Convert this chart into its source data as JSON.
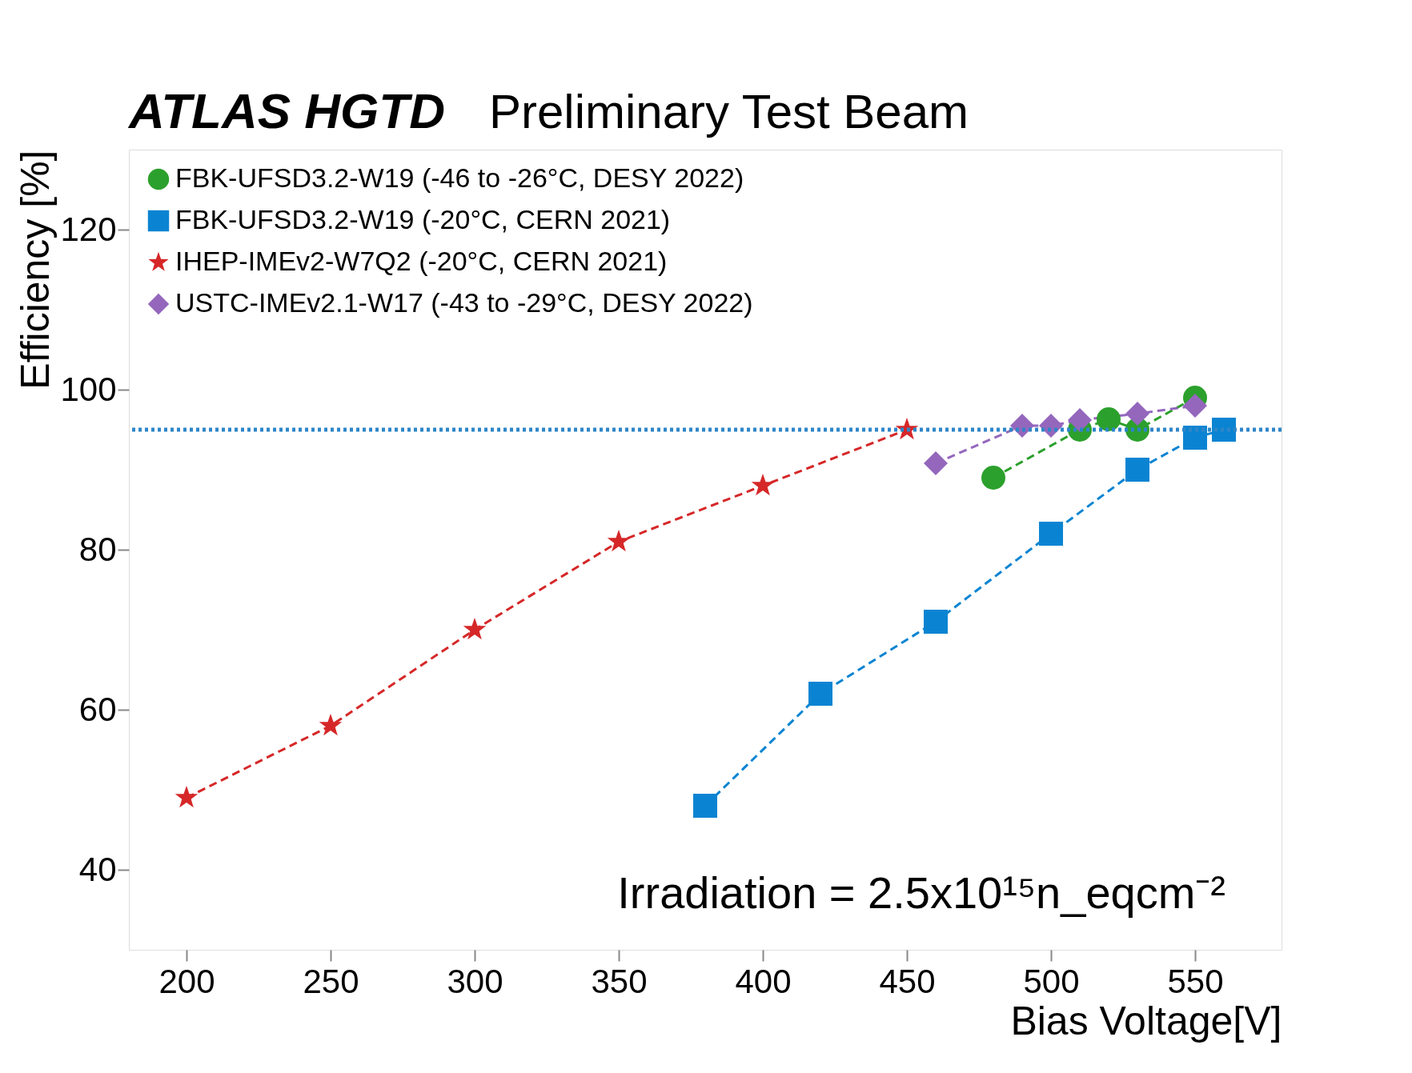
{
  "chart_data": {
    "type": "line",
    "title": "ATLAS HGTD",
    "subtitle": "Preliminary Test Beam",
    "xlabel": "Bias Voltage[V]",
    "ylabel": "Efficiency [%]",
    "xlim": [
      180,
      580
    ],
    "xticks": [
      200,
      250,
      300,
      350,
      400,
      450,
      500,
      550
    ],
    "ylim": [
      30,
      130
    ],
    "yticks": [
      40,
      60,
      80,
      100,
      120
    ],
    "line_style": "dashed",
    "legend": "top left",
    "grid": false,
    "series": [
      {
        "name": "FBK-UFSD3.2-W19 (-46 to -26°C, DESY 2022)",
        "color": "#2ca02c",
        "marker": "circle",
        "x": [
          480,
          510,
          520,
          530,
          550
        ],
        "values": [
          89,
          95,
          96.3,
          95,
          99
        ]
      },
      {
        "name": "FBK-UFSD3.2-W19 (-20°C, CERN 2021)",
        "color": "#0a84d2",
        "marker": "square",
        "x": [
          380,
          420,
          460,
          500,
          530,
          550,
          560
        ],
        "values": [
          48,
          62,
          71,
          82,
          90,
          94,
          95
        ]
      },
      {
        "name": "IHEP-IMEv2-W7Q2 (-20°C, CERN 2021)",
        "color": "#d62728",
        "marker": "star",
        "x": [
          200,
          250,
          300,
          350,
          400,
          450
        ],
        "values": [
          49,
          58,
          70,
          81,
          88,
          95
        ]
      },
      {
        "name": "USTC-IMEv2.1-W17 (-43 to -29°C, DESY 2022)",
        "color": "#9467bd",
        "marker": "diamond",
        "x": [
          460,
          490,
          500,
          510,
          530,
          550
        ],
        "values": [
          90.8,
          95.5,
          95.5,
          96.2,
          97,
          98
        ]
      }
    ],
    "ref_lines": [
      {
        "axis": "y",
        "value": 95,
        "color": "#2e86c8",
        "line_style": "dotted"
      }
    ],
    "annotations": [
      "Irradiation = 2.5x10¹⁵n_eqcm⁻²"
    ]
  }
}
